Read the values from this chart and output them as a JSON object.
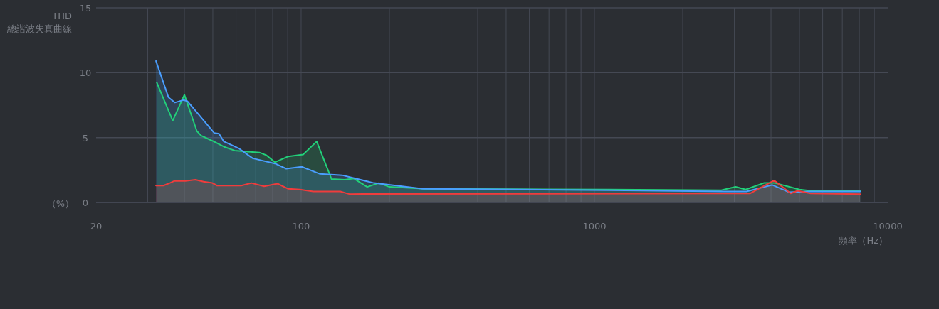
{
  "chart_data": {
    "type": "area",
    "ylabel": "THD\n總諧波失真曲線",
    "xlabel": "頻率（Hz）",
    "annotations": [
      "（%）"
    ],
    "log": "x",
    "xlim": [
      20,
      10000
    ],
    "xticks": [
      20,
      100,
      1000,
      10000
    ],
    "ylim": [
      0,
      15
    ],
    "yticks": [
      0,
      5,
      10,
      15
    ],
    "grid": true,
    "series": [
      {
        "color": "#22d07a",
        "x": [
          32.2,
          36.5,
          40,
          44.1,
          45.6,
          49.8,
          54.5,
          59.3,
          72.1,
          76,
          81.4,
          90.4,
          101.6,
          113,
          127,
          141,
          151,
          168,
          184,
          200,
          265,
          1120,
          2710,
          3030,
          3280,
          3780,
          4130,
          5000,
          5460,
          8060
        ],
        "values": [
          9.25,
          6.3,
          8.3,
          5.5,
          5.15,
          4.75,
          4.3,
          4.0,
          3.85,
          3.65,
          3.1,
          3.55,
          3.7,
          4.7,
          1.8,
          1.75,
          1.85,
          1.2,
          1.5,
          1.2,
          1.05,
          1.0,
          0.95,
          1.2,
          1.0,
          1.5,
          1.5,
          1.0,
          0.9,
          0.88
        ]
      },
      {
        "color": "#4a9eff",
        "x": [
          32.0,
          35.3,
          37.1,
          39.7,
          41.0,
          50.6,
          52.5,
          54.5,
          61.5,
          68.4,
          81.4,
          89.0,
          100.5,
          116,
          138,
          177,
          260,
          1120,
          2800,
          3300,
          4040,
          4600,
          5460,
          8060
        ],
        "values": [
          10.9,
          8.1,
          7.7,
          7.9,
          7.8,
          5.35,
          5.3,
          4.7,
          4.15,
          3.4,
          3.0,
          2.6,
          2.75,
          2.2,
          2.1,
          1.5,
          1.05,
          0.95,
          0.85,
          0.85,
          1.35,
          0.8,
          0.85,
          0.85
        ]
      },
      {
        "color": "#f03c3c",
        "x": [
          32,
          33.9,
          35.7,
          36.9,
          40.3,
          43.6,
          46.5,
          49.8,
          51.7,
          62.5,
          67.7,
          74.8,
          83.1,
          90.4,
          99,
          110,
          136,
          146,
          3400,
          4100,
          4670,
          4930,
          5460,
          8060
        ],
        "values": [
          1.3,
          1.3,
          1.5,
          1.65,
          1.65,
          1.75,
          1.6,
          1.5,
          1.3,
          1.3,
          1.5,
          1.25,
          1.45,
          1.05,
          1.0,
          0.85,
          0.85,
          0.65,
          0.7,
          1.7,
          0.7,
          0.9,
          0.7,
          0.65
        ]
      }
    ]
  }
}
